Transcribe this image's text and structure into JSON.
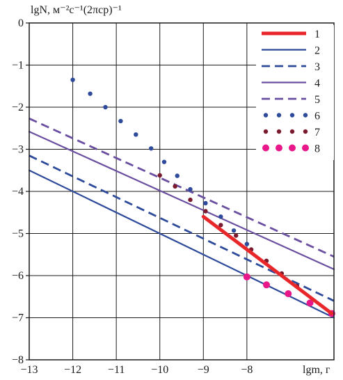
{
  "chart_data": {
    "type": "line",
    "ylabel": "lgN, м⁻²с⁻¹(2πср)⁻¹",
    "xlabel": "lgm, г",
    "xlim": [
      -13,
      -6
    ],
    "ylim": [
      -8,
      0
    ],
    "x_ticks": [
      -13,
      -12,
      -11,
      -10,
      -9,
      -8
    ],
    "x_tick_labels": [
      "−13",
      "−12",
      "−11",
      "−10",
      "−9",
      "−8"
    ],
    "y_ticks": [
      0,
      -1,
      -2,
      -3,
      -4,
      -5,
      -6,
      -7,
      -8
    ],
    "y_tick_labels": [
      "0",
      "−1",
      "−2",
      "−3",
      "−4",
      "−5",
      "−6",
      "−7",
      "−8"
    ],
    "grid": true,
    "legend_position": "top-right",
    "series": [
      {
        "name": "1",
        "color": "#e8272a",
        "style": "thick",
        "x": [
          -9.0,
          -6.05
        ],
        "y": [
          -4.6,
          -6.9
        ]
      },
      {
        "name": "2",
        "color": "#2e4a9a",
        "style": "solid",
        "x": [
          -13.0,
          -6.0
        ],
        "y": [
          -3.5,
          -7.0
        ]
      },
      {
        "name": "3",
        "color": "#2e4a9a",
        "style": "dashed",
        "x": [
          -13.0,
          -6.0
        ],
        "y": [
          -3.15,
          -6.6
        ]
      },
      {
        "name": "4",
        "color": "#6a4fa0",
        "style": "solid",
        "x": [
          -13.0,
          -6.0
        ],
        "y": [
          -2.58,
          -5.85
        ]
      },
      {
        "name": "5",
        "color": "#6a4fa0",
        "style": "dashed",
        "x": [
          -13.0,
          -6.0
        ],
        "y": [
          -2.27,
          -5.55
        ]
      },
      {
        "name": "6",
        "color": "#2e4a9a",
        "style": "dots",
        "x": [
          -12.0,
          -11.6,
          -11.25,
          -10.9,
          -10.55,
          -10.2,
          -9.9,
          -9.6,
          -9.3,
          -8.95,
          -8.6,
          -8.3,
          -8.0
        ],
        "y": [
          -1.35,
          -1.68,
          -2.0,
          -2.33,
          -2.65,
          -2.98,
          -3.3,
          -3.63,
          -3.95,
          -4.28,
          -4.6,
          -4.93,
          -5.25
        ]
      },
      {
        "name": "7",
        "color": "#7a1a2e",
        "style": "dots",
        "x": [
          -10.0,
          -9.65,
          -9.3,
          -8.95,
          -8.6,
          -8.25,
          -7.9,
          -7.55,
          -7.2,
          -6.85
        ],
        "y": [
          -3.62,
          -3.88,
          -4.2,
          -4.47,
          -4.8,
          -5.05,
          -5.38,
          -5.65,
          -5.95,
          -6.25
        ]
      },
      {
        "name": "8",
        "color": "#e8178a",
        "style": "bigdots",
        "x": [
          -8.0,
          -7.55,
          -7.05,
          -6.55,
          -6.05
        ],
        "y": [
          -6.03,
          -6.22,
          -6.43,
          -6.65,
          -6.9
        ]
      }
    ]
  }
}
